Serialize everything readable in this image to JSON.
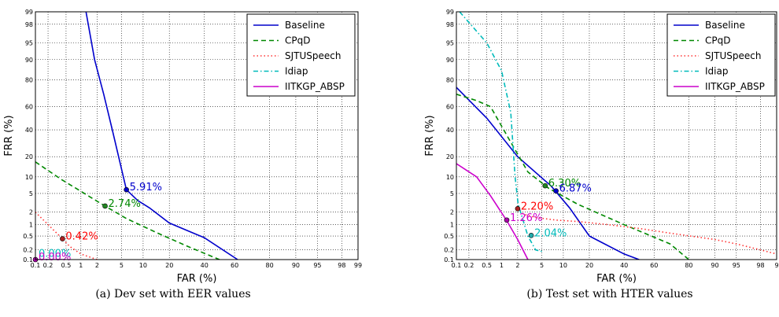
{
  "chart_data": [
    {
      "type": "line",
      "scale": "normal-deviate (DET)",
      "caption": "(a) Dev set with EER values",
      "xlabel": "FAR (%)",
      "ylabel": "FRR (%)",
      "xlim": [
        0.1,
        99
      ],
      "ylim": [
        0.1,
        99
      ],
      "xticks": [
        "0.1",
        "0.2",
        "0.5",
        "1",
        "2",
        "5",
        "10",
        "20",
        "40",
        "60",
        "80",
        "90",
        "95",
        "98",
        "99"
      ],
      "yticks": [
        "0.1",
        "0.2",
        "0.5",
        "1",
        "2",
        "5",
        "10",
        "20",
        "40",
        "60",
        "80",
        "90",
        "95",
        "98",
        "99"
      ],
      "legend_position": "top-right",
      "series": [
        {
          "name": "Baseline",
          "color": "#0000cc",
          "dash": "solid",
          "x": [
            1.25,
            1.8,
            2.6,
            3.6,
            5.91,
            8.5,
            12,
            20,
            40,
            62
          ],
          "y": [
            99,
            90,
            70,
            40,
            5.91,
            3.6,
            2.5,
            1.1,
            0.45,
            0.1
          ]
        },
        {
          "name": "CPqD",
          "color": "#008800",
          "dash": "dashed",
          "x": [
            0.1,
            0.4,
            1.0,
            2.74,
            6,
            15,
            30,
            50
          ],
          "y": [
            17,
            9,
            5.5,
            2.74,
            1.4,
            0.6,
            0.25,
            0.1
          ]
        },
        {
          "name": "SJTUSpeech",
          "color": "#ff3333",
          "dash": "dotted",
          "x": [
            0.1,
            0.2,
            0.42,
            0.6,
            1.0,
            2.0
          ],
          "y": [
            2.0,
            1.0,
            0.42,
            0.25,
            0.15,
            0.1
          ]
        },
        {
          "name": "Idiap",
          "color": "#00bbbb",
          "dash": "dashdot",
          "x": [
            0.1,
            0.3,
            0.5
          ],
          "y": [
            0.1,
            0.1,
            0.1
          ]
        },
        {
          "name": "IITKGP_ABSP",
          "color": "#cc00cc",
          "dash": "solid",
          "x": [
            0.1,
            0.3,
            0.5
          ],
          "y": [
            0.1,
            0.1,
            0.1
          ]
        }
      ],
      "annotations": [
        {
          "text": "5.91%",
          "x": 5.91,
          "y": 5.91,
          "color": "#0000cc",
          "dot": "#0000cc"
        },
        {
          "text": "2.74%",
          "x": 2.74,
          "y": 2.74,
          "color": "#008800",
          "dot": "#228822"
        },
        {
          "text": "0.42%",
          "x": 0.42,
          "y": 0.42,
          "color": "#ff0000",
          "dot": "#aa2222"
        },
        {
          "text": "0.00%",
          "x": 0.1,
          "y": 0.13,
          "color": "#00bbbb",
          "dot": ""
        },
        {
          "text": "0.00%",
          "x": 0.1,
          "y": 0.1,
          "color": "#cc00cc",
          "dot": "#aa00aa"
        }
      ]
    },
    {
      "type": "line",
      "scale": "normal-deviate (DET)",
      "caption": "(b) Test set with HTER values",
      "xlabel": "FAR (%)",
      "ylabel": "FRR (%)",
      "xlim": [
        0.1,
        99
      ],
      "ylim": [
        0.1,
        99
      ],
      "xticks": [
        "0.1",
        "0.2",
        "0.5",
        "1",
        "2",
        "5",
        "10",
        "20",
        "40",
        "60",
        "80",
        "90",
        "95",
        "98",
        "9"
      ],
      "yticks": [
        "0.1",
        "0.2",
        "0.5",
        "1",
        "2",
        "5",
        "10",
        "20",
        "40",
        "60",
        "80",
        "90",
        "95",
        "98",
        "99"
      ],
      "legend_position": "top-right",
      "series": [
        {
          "name": "Baseline",
          "color": "#0000cc",
          "dash": "solid",
          "x": [
            0.1,
            0.5,
            2,
            6.87,
            12,
            20,
            40,
            50
          ],
          "y": [
            75,
            50,
            20,
            6.87,
            2.5,
            0.5,
            0.15,
            0.1
          ]
        },
        {
          "name": "CPqD",
          "color": "#008800",
          "dash": "dashed",
          "x": [
            0.1,
            0.3,
            0.6,
            1.5,
            3,
            6.3,
            15,
            40,
            70,
            80
          ],
          "y": [
            70,
            65,
            60,
            30,
            12,
            6.3,
            3,
            1,
            0.3,
            0.1
          ]
        },
        {
          "name": "SJTUSpeech",
          "color": "#ff3333",
          "dash": "dotted",
          "x": [
            2.2,
            2.5,
            4,
            8,
            15,
            30,
            50,
            70,
            90,
            95,
            98,
            99
          ],
          "y": [
            2.2,
            1.8,
            1.5,
            1.3,
            1.2,
            1.0,
            0.8,
            0.6,
            0.4,
            0.3,
            0.2,
            0.15
          ]
        },
        {
          "name": "Idiap",
          "color": "#00bbbb",
          "dash": "dashdot",
          "x": [
            0.12,
            0.5,
            1.0,
            1.5,
            1.8,
            2.04,
            3,
            4,
            5
          ],
          "y": [
            99,
            95,
            85,
            55,
            10,
            3,
            0.5,
            0.2,
            0.18
          ]
        },
        {
          "name": "IITKGP_ABSP",
          "color": "#cc00cc",
          "dash": "solid",
          "x": [
            0.1,
            0.3,
            0.6,
            1.26,
            2.0,
            3.0
          ],
          "y": [
            16,
            10,
            4.5,
            1.26,
            0.4,
            0.1
          ]
        }
      ],
      "annotations": [
        {
          "text": "6.30%",
          "x": 5.6,
          "y": 7.0,
          "color": "#008800",
          "dot": "#228822"
        },
        {
          "text": "6.87%",
          "x": 8.0,
          "y": 5.6,
          "color": "#0000cc",
          "dot": "#0000cc"
        },
        {
          "text": "2.20%",
          "x": 2.0,
          "y": 2.4,
          "color": "#ff0000",
          "dot": "#aa2222"
        },
        {
          "text": "1.26%",
          "x": 1.26,
          "y": 1.3,
          "color": "#cc00cc",
          "dot": "#aa00aa"
        },
        {
          "text": "2.04%",
          "x": 3.4,
          "y": 0.52,
          "color": "#00bbbb",
          "dot": "#22aaaa"
        }
      ]
    }
  ]
}
